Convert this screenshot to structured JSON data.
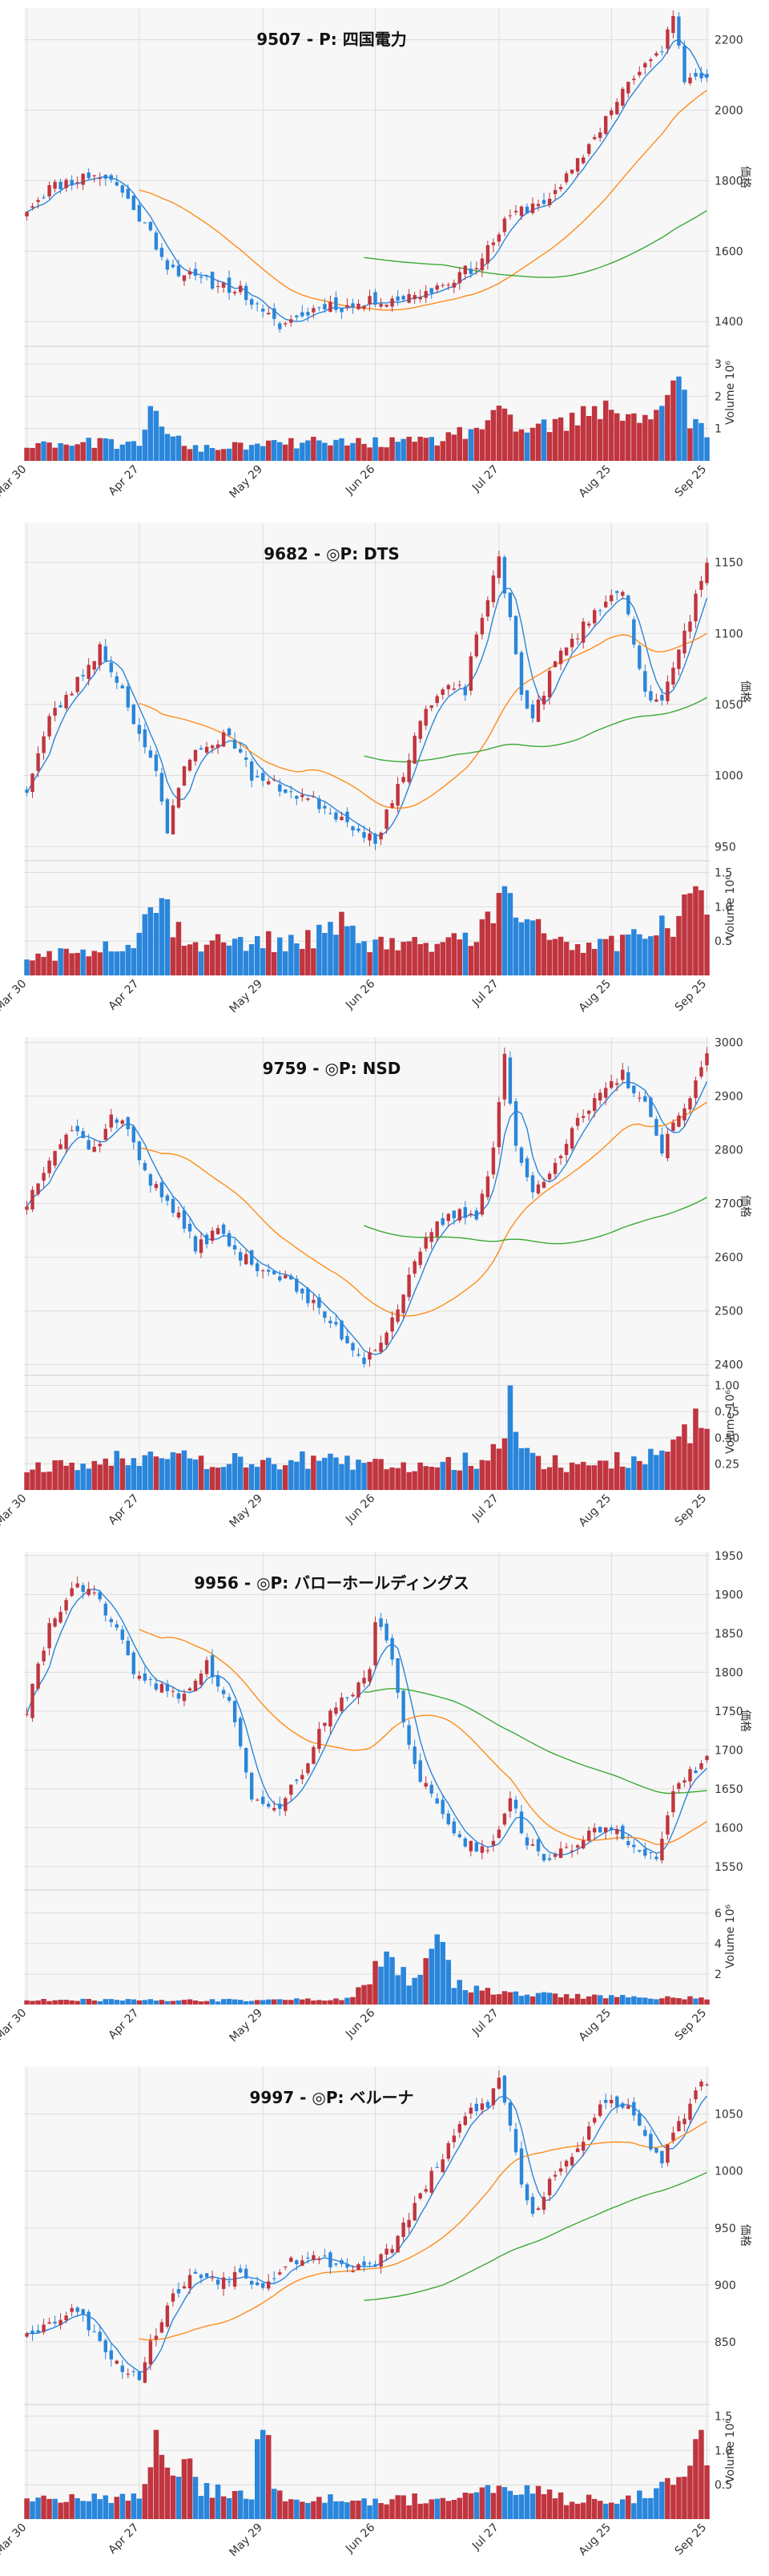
{
  "x_tick_labels": [
    "Mar 30",
    "Apr 27",
    "May 29",
    "Jun 26",
    "Jul 27",
    "Aug 25",
    "Sep 25"
  ],
  "colors": {
    "up": "#c0353f",
    "down": "#2a86db",
    "ma_short": "#2a86db",
    "ma_mid": "#ff8c1a",
    "ma_long": "#3aaa35",
    "grid": "#dddddd",
    "bg": "#f7f7f7"
  },
  "chart_data": [
    {
      "type": "candlestick",
      "title": "9507 - P: 四国電力",
      "ylabel": "価格",
      "volume_label": "Volume",
      "volume_exponent": "10⁶",
      "ylim": [
        1330,
        2290
      ],
      "yticks": [
        1400,
        1600,
        1800,
        2000,
        2200
      ],
      "vol_ylim": [
        0,
        3.4
      ],
      "vol_ticks": [
        1,
        2,
        3
      ],
      "vol_tick_labels": [
        "1",
        "2",
        "3"
      ],
      "keypoints": [
        [
          0,
          1720
        ],
        [
          4,
          1780
        ],
        [
          12,
          1820
        ],
        [
          16,
          1790
        ],
        [
          22,
          1650
        ],
        [
          25,
          1560
        ],
        [
          30,
          1520
        ],
        [
          38,
          1490
        ],
        [
          42,
          1420
        ],
        [
          45,
          1390
        ],
        [
          48,
          1410
        ],
        [
          53,
          1450
        ],
        [
          57,
          1440
        ],
        [
          62,
          1460
        ],
        [
          68,
          1470
        ],
        [
          72,
          1490
        ],
        [
          80,
          1560
        ],
        [
          86,
          1700
        ],
        [
          90,
          1730
        ],
        [
          94,
          1760
        ],
        [
          98,
          1850
        ],
        [
          102,
          1950
        ],
        [
          106,
          2060
        ],
        [
          110,
          2120
        ],
        [
          113,
          2180
        ],
        [
          115,
          2260
        ],
        [
          117,
          2090
        ],
        [
          121,
          2110
        ]
      ],
      "vol_keypoints": [
        [
          0,
          0.6
        ],
        [
          10,
          0.6
        ],
        [
          20,
          0.5
        ],
        [
          22,
          2.2
        ],
        [
          24,
          0.9
        ],
        [
          30,
          0.4
        ],
        [
          40,
          0.5
        ],
        [
          50,
          0.6
        ],
        [
          60,
          0.6
        ],
        [
          70,
          0.6
        ],
        [
          76,
          0.8
        ],
        [
          84,
          1.4
        ],
        [
          88,
          1.0
        ],
        [
          96,
          1.2
        ],
        [
          104,
          1.7
        ],
        [
          112,
          1.4
        ],
        [
          115,
          3.1
        ],
        [
          118,
          1.3
        ],
        [
          121,
          1.0
        ]
      ],
      "vol_scale": 3.0,
      "seed": 11,
      "ma_starts": [
        0,
        20,
        60
      ]
    },
    {
      "type": "candlestick",
      "title": "9682 - ◎P: DTS",
      "ylabel": "価格",
      "volume_label": "Volume",
      "volume_exponent": "10⁶",
      "ylim": [
        940,
        1178
      ],
      "yticks": [
        950,
        1000,
        1050,
        1100,
        1150
      ],
      "vol_ylim": [
        0,
        1.6
      ],
      "vol_ticks": [
        0.5,
        1.0,
        1.5
      ],
      "vol_tick_labels": [
        "0.5",
        "1.0",
        "1.5"
      ],
      "keypoints": [
        [
          0,
          990
        ],
        [
          4,
          1040
        ],
        [
          8,
          1060
        ],
        [
          13,
          1090
        ],
        [
          17,
          1060
        ],
        [
          21,
          1020
        ],
        [
          23,
          1000
        ],
        [
          25,
          960
        ],
        [
          28,
          1010
        ],
        [
          32,
          1020
        ],
        [
          36,
          1030
        ],
        [
          40,
          1000
        ],
        [
          46,
          990
        ],
        [
          52,
          980
        ],
        [
          56,
          970
        ],
        [
          60,
          960
        ],
        [
          62,
          955
        ],
        [
          66,
          990
        ],
        [
          70,
          1040
        ],
        [
          74,
          1060
        ],
        [
          78,
          1060
        ],
        [
          80,
          1100
        ],
        [
          84,
          1150
        ],
        [
          86,
          1110
        ],
        [
          88,
          1060
        ],
        [
          90,
          1040
        ],
        [
          94,
          1080
        ],
        [
          98,
          1100
        ],
        [
          102,
          1120
        ],
        [
          106,
          1130
        ],
        [
          110,
          1060
        ],
        [
          113,
          1050
        ],
        [
          117,
          1100
        ],
        [
          121,
          1150
        ]
      ],
      "vol_keypoints": [
        [
          0,
          0.3
        ],
        [
          10,
          0.35
        ],
        [
          20,
          0.6
        ],
        [
          23,
          1.3
        ],
        [
          26,
          0.8
        ],
        [
          30,
          0.5
        ],
        [
          40,
          0.5
        ],
        [
          50,
          0.55
        ],
        [
          56,
          0.75
        ],
        [
          60,
          0.5
        ],
        [
          70,
          0.45
        ],
        [
          80,
          0.6
        ],
        [
          83,
          1.0
        ],
        [
          85,
          1.6
        ],
        [
          87,
          0.8
        ],
        [
          94,
          0.6
        ],
        [
          100,
          0.4
        ],
        [
          108,
          0.6
        ],
        [
          116,
          0.8
        ],
        [
          119,
          1.3
        ],
        [
          121,
          1.0
        ]
      ],
      "vol_scale": 1.3,
      "seed": 23,
      "ma_starts": [
        0,
        20,
        60
      ]
    },
    {
      "type": "candlestick",
      "title": "9759 - ◎P: NSD",
      "ylabel": "価格",
      "volume_label": "Volume",
      "volume_exponent": "10⁶",
      "ylim": [
        2380,
        3010
      ],
      "yticks": [
        2400,
        2500,
        2600,
        2700,
        2800,
        2900,
        3000
      ],
      "vol_ylim": [
        0,
        1.05
      ],
      "vol_ticks": [
        0.25,
        0.5,
        0.75,
        1.0
      ],
      "vol_tick_labels": [
        "0.25",
        "0.50",
        "0.75",
        "1.00"
      ],
      "keypoints": [
        [
          0,
          2700
        ],
        [
          4,
          2790
        ],
        [
          8,
          2840
        ],
        [
          12,
          2800
        ],
        [
          15,
          2860
        ],
        [
          18,
          2840
        ],
        [
          22,
          2740
        ],
        [
          26,
          2690
        ],
        [
          30,
          2620
        ],
        [
          34,
          2650
        ],
        [
          38,
          2600
        ],
        [
          42,
          2580
        ],
        [
          46,
          2560
        ],
        [
          50,
          2520
        ],
        [
          54,
          2480
        ],
        [
          58,
          2430
        ],
        [
          60,
          2410
        ],
        [
          64,
          2460
        ],
        [
          68,
          2560
        ],
        [
          72,
          2650
        ],
        [
          76,
          2680
        ],
        [
          80,
          2680
        ],
        [
          83,
          2800
        ],
        [
          85,
          2980
        ],
        [
          87,
          2800
        ],
        [
          90,
          2720
        ],
        [
          94,
          2780
        ],
        [
          98,
          2850
        ],
        [
          102,
          2900
        ],
        [
          106,
          2940
        ],
        [
          110,
          2880
        ],
        [
          113,
          2800
        ],
        [
          116,
          2860
        ],
        [
          119,
          2920
        ],
        [
          121,
          2980
        ]
      ],
      "vol_keypoints": [
        [
          0,
          0.25
        ],
        [
          10,
          0.25
        ],
        [
          20,
          0.35
        ],
        [
          24,
          0.45
        ],
        [
          30,
          0.3
        ],
        [
          40,
          0.3
        ],
        [
          50,
          0.3
        ],
        [
          60,
          0.25
        ],
        [
          70,
          0.25
        ],
        [
          80,
          0.3
        ],
        [
          84,
          0.45
        ],
        [
          86,
          1.0
        ],
        [
          88,
          0.35
        ],
        [
          96,
          0.25
        ],
        [
          106,
          0.3
        ],
        [
          114,
          0.35
        ],
        [
          118,
          0.65
        ],
        [
          120,
          0.85
        ],
        [
          121,
          0.5
        ]
      ],
      "vol_scale": 1.0,
      "seed": 37,
      "ma_starts": [
        0,
        20,
        60
      ]
    },
    {
      "type": "candlestick",
      "title": "9956 - ◎P: バローホールディングス",
      "ylabel": "価格",
      "volume_label": "Volume",
      "volume_exponent": "10⁶",
      "ylim": [
        1520,
        1955
      ],
      "yticks": [
        1550,
        1600,
        1650,
        1700,
        1750,
        1800,
        1850,
        1900,
        1950
      ],
      "vol_ylim": [
        0,
        7.2
      ],
      "vol_ticks": [
        2,
        4,
        6
      ],
      "vol_tick_labels": [
        "2",
        "4",
        "6"
      ],
      "keypoints": [
        [
          0,
          1750
        ],
        [
          4,
          1860
        ],
        [
          8,
          1910
        ],
        [
          12,
          1900
        ],
        [
          16,
          1850
        ],
        [
          20,
          1790
        ],
        [
          24,
          1780
        ],
        [
          28,
          1770
        ],
        [
          32,
          1810
        ],
        [
          36,
          1760
        ],
        [
          38,
          1700
        ],
        [
          40,
          1640
        ],
        [
          44,
          1620
        ],
        [
          48,
          1660
        ],
        [
          50,
          1690
        ],
        [
          54,
          1750
        ],
        [
          58,
          1770
        ],
        [
          61,
          1800
        ],
        [
          62,
          1870
        ],
        [
          65,
          1820
        ],
        [
          68,
          1700
        ],
        [
          70,
          1660
        ],
        [
          74,
          1620
        ],
        [
          78,
          1580
        ],
        [
          82,
          1570
        ],
        [
          86,
          1640
        ],
        [
          89,
          1580
        ],
        [
          92,
          1560
        ],
        [
          96,
          1570
        ],
        [
          100,
          1590
        ],
        [
          104,
          1600
        ],
        [
          108,
          1580
        ],
        [
          112,
          1560
        ],
        [
          115,
          1640
        ],
        [
          118,
          1670
        ],
        [
          121,
          1690
        ]
      ],
      "vol_keypoints": [
        [
          0,
          0.3
        ],
        [
          20,
          0.3
        ],
        [
          40,
          0.3
        ],
        [
          58,
          0.4
        ],
        [
          62,
          2.5
        ],
        [
          65,
          3.0
        ],
        [
          68,
          1.5
        ],
        [
          70,
          2.0
        ],
        [
          73,
          6.6
        ],
        [
          76,
          1.5
        ],
        [
          80,
          1.0
        ],
        [
          86,
          0.8
        ],
        [
          96,
          0.6
        ],
        [
          106,
          0.5
        ],
        [
          116,
          0.5
        ],
        [
          121,
          0.4
        ]
      ],
      "vol_scale": 6.6,
      "seed": 41,
      "ma_starts": [
        0,
        20,
        60
      ]
    },
    {
      "type": "candlestick",
      "title": "9997 - ◎P: ベルーナ",
      "ylabel": "価格",
      "volume_label": "Volume",
      "volume_exponent": "10⁶",
      "ylim": [
        795,
        1092
      ],
      "yticks": [
        850,
        900,
        950,
        1000,
        1050
      ],
      "vol_ylim": [
        0,
        1.6
      ],
      "vol_ticks": [
        0.5,
        1.0,
        1.5
      ],
      "vol_tick_labels": [
        "0.5",
        "1.0",
        "1.5"
      ],
      "keypoints": [
        [
          0,
          860
        ],
        [
          4,
          865
        ],
        [
          8,
          880
        ],
        [
          12,
          860
        ],
        [
          16,
          830
        ],
        [
          20,
          820
        ],
        [
          23,
          860
        ],
        [
          26,
          890
        ],
        [
          30,
          910
        ],
        [
          34,
          905
        ],
        [
          38,
          910
        ],
        [
          42,
          900
        ],
        [
          46,
          920
        ],
        [
          50,
          925
        ],
        [
          54,
          920
        ],
        [
          58,
          915
        ],
        [
          62,
          920
        ],
        [
          66,
          940
        ],
        [
          70,
          980
        ],
        [
          74,
          1010
        ],
        [
          78,
          1050
        ],
        [
          82,
          1060
        ],
        [
          84,
          1080
        ],
        [
          86,
          1040
        ],
        [
          88,
          990
        ],
        [
          90,
          960
        ],
        [
          94,
          1000
        ],
        [
          98,
          1020
        ],
        [
          102,
          1060
        ],
        [
          106,
          1060
        ],
        [
          110,
          1030
        ],
        [
          113,
          1010
        ],
        [
          116,
          1040
        ],
        [
          119,
          1070
        ],
        [
          121,
          1080
        ]
      ],
      "vol_keypoints": [
        [
          0,
          0.3
        ],
        [
          10,
          0.35
        ],
        [
          20,
          0.3
        ],
        [
          23,
          1.4
        ],
        [
          26,
          0.6
        ],
        [
          28,
          1.0
        ],
        [
          30,
          0.5
        ],
        [
          40,
          0.4
        ],
        [
          42,
          1.8
        ],
        [
          44,
          0.4
        ],
        [
          50,
          0.35
        ],
        [
          60,
          0.3
        ],
        [
          70,
          0.3
        ],
        [
          80,
          0.35
        ],
        [
          86,
          0.5
        ],
        [
          96,
          0.3
        ],
        [
          106,
          0.3
        ],
        [
          114,
          0.5
        ],
        [
          118,
          0.9
        ],
        [
          120,
          1.3
        ],
        [
          121,
          0.8
        ]
      ],
      "vol_scale": 1.3,
      "seed": 53,
      "ma_starts": [
        0,
        20,
        60
      ]
    }
  ]
}
